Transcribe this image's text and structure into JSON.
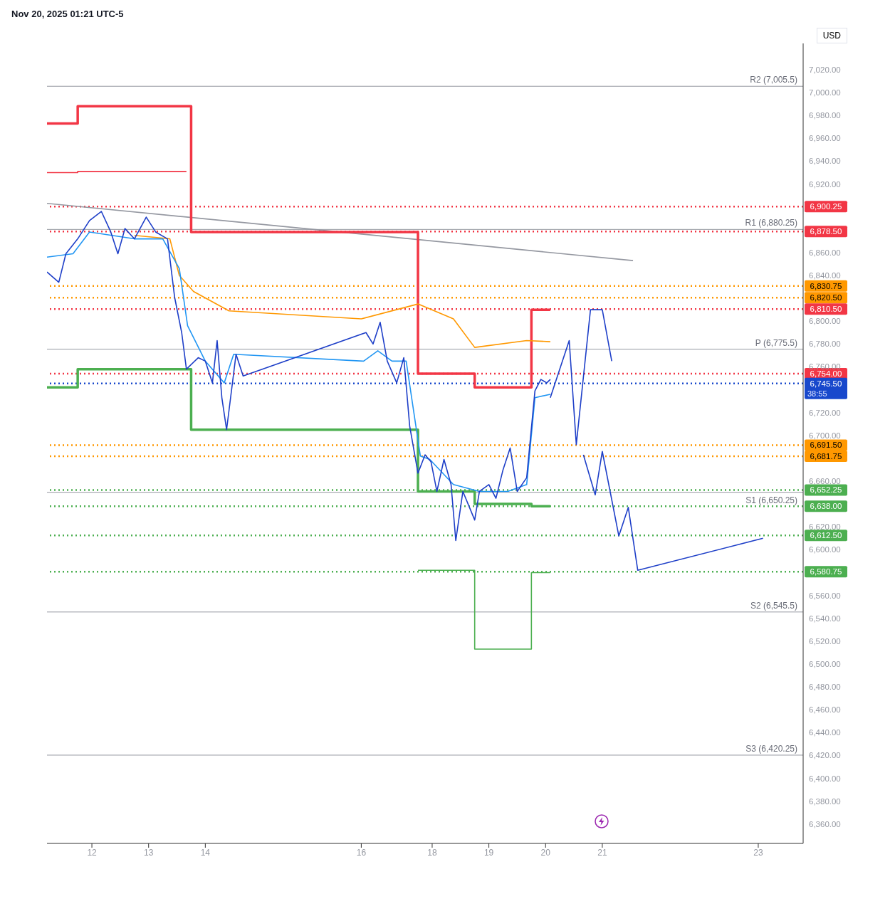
{
  "chart_data": {
    "type": "line",
    "title": "Nov 20, 2025 01:21 UTC-5",
    "annotations": [
      "USD",
      "38:55"
    ],
    "xlim": [
      "2025-11-11T05:00",
      "2025-11-24T13:00"
    ],
    "xticks": [
      {
        "value": "2025-11-12T00:00",
        "label": "12"
      },
      {
        "value": "2025-11-13T00:00",
        "label": "13"
      },
      {
        "value": "2025-11-14T00:00",
        "label": "14"
      },
      {
        "value": "2025-11-16T18:00",
        "label": "16"
      },
      {
        "value": "2025-11-18T00:00",
        "label": "18"
      },
      {
        "value": "2025-11-19T00:00",
        "label": "19"
      },
      {
        "value": "2025-11-20T00:00",
        "label": "20"
      },
      {
        "value": "2025-11-21T00:00",
        "label": "21"
      },
      {
        "value": "2025-11-23T18:00",
        "label": "23"
      }
    ],
    "ylim": [
      6343,
      7043
    ],
    "yticks": [
      {
        "value": 7020,
        "label": "7,020.00"
      },
      {
        "value": 7000,
        "label": "7,000.00"
      },
      {
        "value": 6980,
        "label": "6,980.00"
      },
      {
        "value": 6960,
        "label": "6,960.00"
      },
      {
        "value": 6940,
        "label": "6,940.00"
      },
      {
        "value": 6920,
        "label": "6,920.00"
      },
      {
        "value": 6860,
        "label": "6,860.00"
      },
      {
        "value": 6840,
        "label": "6,840.00"
      },
      {
        "value": 6800,
        "label": "6,800.00"
      },
      {
        "value": 6780,
        "label": "6,780.00"
      },
      {
        "value": 6760,
        "label": "6,760.00"
      },
      {
        "value": 6720,
        "label": "6,720.00"
      },
      {
        "value": 6700,
        "label": "6,700.00"
      },
      {
        "value": 6660,
        "label": "6,660.00"
      },
      {
        "value": 6620,
        "label": "6,620.00"
      },
      {
        "value": 6600,
        "label": "6,600.00"
      },
      {
        "value": 6560,
        "label": "6,560.00"
      },
      {
        "value": 6540,
        "label": "6,540.00"
      },
      {
        "value": 6520,
        "label": "6,520.00"
      },
      {
        "value": 6500,
        "label": "6,500.00"
      },
      {
        "value": 6480,
        "label": "6,480.00"
      },
      {
        "value": 6460,
        "label": "6,460.00"
      },
      {
        "value": 6440,
        "label": "6,440.00"
      },
      {
        "value": 6420,
        "label": "6,420.00"
      },
      {
        "value": 6400,
        "label": "6,400.00"
      },
      {
        "value": 6380,
        "label": "6,380.00"
      },
      {
        "value": 6360,
        "label": "6,360.00"
      }
    ],
    "marker": "none",
    "series": [
      {
        "type": "line",
        "color": "#9598a1",
        "x": [
          "2025-11-11T05:00",
          "2025-11-21T13:00"
        ],
        "values": [
          6903,
          6853
        ]
      },
      {
        "type": "step",
        "color": "#f23645",
        "x": [
          "2025-11-11T05:00",
          "2025-11-11T18:00",
          "2025-11-13T16:00"
        ],
        "values": [
          6930,
          6931,
          6931
        ]
      },
      {
        "type": "step",
        "color": "#f23645",
        "x": [
          "2025-11-11T05:00",
          "2025-11-11T18:00",
          "2025-11-13T18:00",
          "2025-11-17T18:00",
          "2025-11-18T18:00",
          "2025-11-19T18:00",
          "2025-11-20T02:00"
        ],
        "values": [
          6973,
          6988,
          6878,
          6754,
          6742,
          6810,
          6810
        ]
      },
      {
        "type": "step",
        "color": "#4caf50",
        "x": [
          "2025-11-11T05:00",
          "2025-11-11T18:00",
          "2025-11-13T18:00",
          "2025-11-17T18:00",
          "2025-11-18T18:00",
          "2025-11-19T18:00",
          "2025-11-20T02:00"
        ],
        "values": [
          6742,
          6758,
          6705,
          6651,
          6640,
          6638,
          6638
        ]
      },
      {
        "type": "step",
        "color": "#4caf50",
        "x": [
          "2025-11-17T18:00",
          "2025-11-18T18:00",
          "2025-11-19T18:00",
          "2025-11-20T02:00"
        ],
        "values": [
          6582,
          6513,
          6580,
          6580
        ]
      },
      {
        "type": "line",
        "color": "#ff9800",
        "x": [
          "2025-11-12T18:00",
          "2025-11-13T09:00",
          "2025-11-13T13:00",
          "2025-11-13T19:00",
          "2025-11-14T10:00",
          "2025-11-16T18:00",
          "2025-11-17T18:00",
          "2025-11-18T09:00",
          "2025-11-18T18:00",
          "2025-11-19T16:00",
          "2025-11-20T02:00"
        ],
        "values": [
          6875,
          6872,
          6840,
          6826,
          6809,
          6802,
          6815,
          6802,
          6777,
          6783,
          6782
        ]
      },
      {
        "type": "line",
        "color": "#2196f3",
        "x": [
          "2025-11-11T05:00",
          "2025-11-11T16:00",
          "2025-11-11T23:00",
          "2025-11-12T18:00",
          "2025-11-13T06:00",
          "2025-11-13T13:00",
          "2025-11-13T16:30",
          "2025-11-14T00:00",
          "2025-11-14T08:00",
          "2025-11-14T12:00",
          "2025-11-16T19:00",
          "2025-11-17T01:00",
          "2025-11-17T07:00",
          "2025-11-17T13:00",
          "2025-11-17T19:00",
          "2025-11-17T23:00",
          "2025-11-18T09:00",
          "2025-11-18T20:00",
          "2025-11-19T08:00",
          "2025-11-19T16:00",
          "2025-11-19T19:30",
          "2025-11-20T02:00"
        ],
        "values": [
          6856,
          6859,
          6878,
          6872,
          6872,
          6846,
          6796,
          6765,
          6746,
          6771,
          6765,
          6774,
          6765,
          6765,
          6682,
          6679,
          6657,
          6651,
          6651,
          6657,
          6733,
          6736
        ]
      },
      {
        "type": "line",
        "color": "#1e3fc8",
        "x": [
          "2025-11-11T05:00",
          "2025-11-11T10:00",
          "2025-11-11T13:00",
          "2025-11-11T18:00",
          "2025-11-11T23:00",
          "2025-11-12T04:00",
          "2025-11-12T08:00",
          "2025-11-12T11:00",
          "2025-11-12T14:00",
          "2025-11-12T18:00",
          "2025-11-12T23:00",
          "2025-11-13T03:00",
          "2025-11-13T08:00",
          "2025-11-13T11:00",
          "2025-11-13T14:00",
          "2025-11-13T16:00",
          "2025-11-13T21:00",
          "2025-11-14T00:00",
          "2025-11-14T03:00",
          "2025-11-14T05:00",
          "2025-11-14T07:00",
          "2025-11-14T09:00",
          "2025-11-14T13:00",
          "2025-11-14T16:00",
          "2025-11-16T20:00",
          "2025-11-16T23:00",
          "2025-11-17T02:00",
          "2025-11-17T05:00",
          "2025-11-17T09:00",
          "2025-11-17T12:00",
          "2025-11-17T14:30",
          "2025-11-17T18:00",
          "2025-11-17T21:00",
          "2025-11-17T23:30",
          "2025-11-18T02:00",
          "2025-11-18T05:00",
          "2025-11-18T08:00",
          "2025-11-18T10:00",
          "2025-11-18T13:00",
          "2025-11-18T18:00",
          "2025-11-18T20:00",
          "2025-11-19T00:00",
          "2025-11-19T03:00",
          "2025-11-19T06:00",
          "2025-11-19T09:00",
          "2025-11-19T12:00",
          "2025-11-19T16:00",
          "2025-11-19T19:30",
          "2025-11-19T22:00",
          "2025-11-20T00:30",
          "2025-11-20T02:00"
        ],
        "values": [
          6843,
          6834,
          6859,
          6872,
          6888,
          6896,
          6878,
          6859,
          6881,
          6872,
          6891,
          6878,
          6872,
          6821,
          6790,
          6758,
          6768,
          6765,
          6746,
          6783,
          6733,
          6705,
          6771,
          6752,
          6790,
          6780,
          6799,
          6765,
          6746,
          6768,
          6708,
          6667,
          6683,
          6677,
          6651,
          6679,
          6657,
          6608,
          6651,
          6626,
          6651,
          6657,
          6645,
          6670,
          6689,
          6651,
          6663,
          6739,
          6749,
          6746,
          6749
        ]
      },
      {
        "type": "line",
        "color": "#1e3fc8",
        "x": [
          "2025-11-20T02:00",
          "2025-11-20T10:00",
          "2025-11-20T13:00",
          "2025-11-20T19:00",
          "2025-11-21T00:00",
          "2025-11-21T04:00"
        ],
        "values": [
          6733,
          6783,
          6692,
          6810,
          6810,
          6765
        ]
      },
      {
        "type": "line",
        "color": "#1e3fc8",
        "x": [
          "2025-11-20T16:00",
          "2025-11-20T21:00",
          "2025-11-21T00:00",
          "2025-11-21T07:00",
          "2025-11-21T11:00",
          "2025-11-21T15:00",
          "2025-11-23T20:00"
        ],
        "values": [
          6683,
          6648,
          6686,
          6612,
          6637,
          6582,
          6610
        ]
      }
    ],
    "ref_lines": [
      {
        "axis": "y",
        "value": 7005.5,
        "label": "R2 (7,005.5)",
        "color": "#9598a1",
        "line_style": "solid"
      },
      {
        "axis": "y",
        "value": 6880.25,
        "label": "R1 (6,880.25)",
        "color": "#9598a1",
        "line_style": "solid"
      },
      {
        "axis": "y",
        "value": 6775.5,
        "label": "P (6,775.5)",
        "color": "#9598a1",
        "line_style": "solid"
      },
      {
        "axis": "y",
        "value": 6650.25,
        "label": "S1 (6,650.25)",
        "color": "#9598a1",
        "line_style": "solid"
      },
      {
        "axis": "y",
        "value": 6545.5,
        "label": "S2 (6,545.5)",
        "color": "#9598a1",
        "line_style": "solid"
      },
      {
        "axis": "y",
        "value": 6420.25,
        "label": "S3 (6,420.25)",
        "color": "#9598a1",
        "line_style": "solid"
      },
      {
        "axis": "y",
        "value": 6900.25,
        "label": "6,900.25",
        "color": "#f23645",
        "line_style": "dotted"
      },
      {
        "axis": "y",
        "value": 6878.5,
        "label": "6,878.50",
        "color": "#f23645",
        "line_style": "dotted"
      },
      {
        "axis": "y",
        "value": 6830.75,
        "label": "6,830.75",
        "color": "#ff9800",
        "line_style": "dotted"
      },
      {
        "axis": "y",
        "value": 6820.5,
        "label": "6,820.50",
        "color": "#ff9800",
        "line_style": "dotted"
      },
      {
        "axis": "y",
        "value": 6810.5,
        "label": "6,810.50",
        "color": "#f23645",
        "line_style": "dotted"
      },
      {
        "axis": "y",
        "value": 6754,
        "label": "6,754.00",
        "color": "#f23645",
        "line_style": "dotted"
      },
      {
        "axis": "y",
        "value": 6745.5,
        "label": "6,745.50",
        "color": "#1848cc",
        "line_style": "dotted"
      },
      {
        "axis": "y",
        "value": 6691.5,
        "label": "6,691.50",
        "color": "#ff9800",
        "line_style": "dotted"
      },
      {
        "axis": "y",
        "value": 6681.75,
        "label": "6,681.75",
        "color": "#ff9800",
        "line_style": "dotted"
      },
      {
        "axis": "y",
        "value": 6652.25,
        "label": "6,652.25",
        "color": "#4caf50",
        "line_style": "dotted"
      },
      {
        "axis": "y",
        "value": 6638,
        "label": "6,638.00",
        "color": "#4caf50",
        "line_style": "dotted"
      },
      {
        "axis": "y",
        "value": 6612.5,
        "label": "6,612.50",
        "color": "#4caf50",
        "line_style": "dotted"
      },
      {
        "axis": "y",
        "value": 6580.75,
        "label": "6,580.75",
        "color": "#4caf50",
        "line_style": "dotted"
      }
    ]
  }
}
